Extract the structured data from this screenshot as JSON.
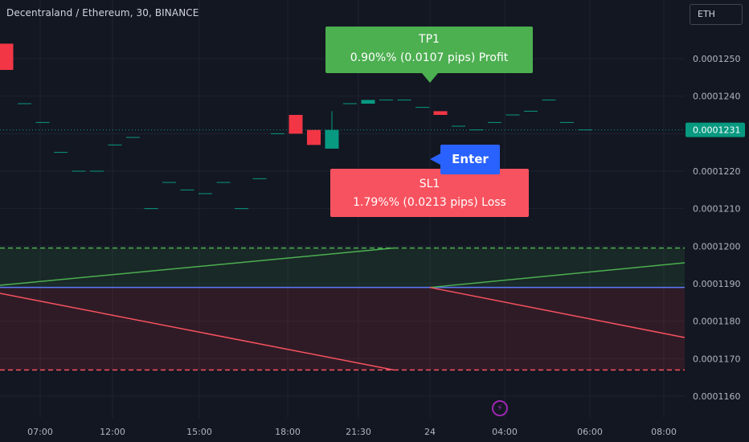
{
  "header": {
    "symbol_title": "Decentraland / Ethereum, 30, BINANCE",
    "currency_badge": "ETH"
  },
  "labels": {
    "tp_title": "TP1",
    "tp_detail": "0.90%% (0.0107 pips) Profit",
    "sl_title": "SL1",
    "sl_detail": "1.79%% (0.0213 pips) Loss",
    "enter": "Enter"
  },
  "colors": {
    "background": "#131722",
    "grid": "#1f2330",
    "up_candle": "#089981",
    "down_candle": "#f23645",
    "tp_green": "#4caf50",
    "sl_red": "#f7525f",
    "entry_blue": "#2962ff",
    "price_badge": "#089981"
  },
  "icons": {
    "bolt": "lightning-bolt-icon"
  },
  "chart_data": {
    "type": "candlestick",
    "title": "Decentraland / Ethereum, 30, BINANCE",
    "current_price": "0.0001231",
    "y_ticks": [
      "0.0001250",
      "0.0001240",
      "0.0001230",
      "0.0001220",
      "0.0001210",
      "0.0001200",
      "0.0001190",
      "0.0001180",
      "0.0001170",
      "0.0001160"
    ],
    "y_tick_values": [
      0.000125,
      0.000124,
      0.000123,
      0.000122,
      0.000121,
      0.00012,
      0.000119,
      0.000118,
      0.000117,
      0.000116
    ],
    "x_ticks": [
      "07:00",
      "12:00",
      "15:00",
      "18:00",
      "21:30",
      "24",
      "04:00",
      "06:00",
      "08:00"
    ],
    "ylim": [
      0.0001155,
      0.000126
    ],
    "grid": true,
    "levels": {
      "entry": 0.0001189,
      "take_profit": 0.00011995,
      "stop_loss": 0.0001167
    },
    "candles": [
      {
        "o": 0.0001254,
        "h": 0.0001254,
        "l": 0.0001247,
        "c": 0.0001247,
        "dir": "down"
      },
      {
        "o": 0.0001238,
        "h": 0.0001238,
        "l": 0.0001238,
        "c": 0.0001238,
        "dir": "down"
      },
      {
        "o": 0.0001233,
        "h": 0.0001233,
        "l": 0.0001233,
        "c": 0.0001233,
        "dir": "down"
      },
      {
        "o": 0.0001225,
        "h": 0.0001225,
        "l": 0.0001225,
        "c": 0.0001225,
        "dir": "down"
      },
      {
        "o": 0.000122,
        "h": 0.000122,
        "l": 0.000122,
        "c": 0.000122,
        "dir": "down"
      },
      {
        "o": 0.000122,
        "h": 0.000122,
        "l": 0.000122,
        "c": 0.000122,
        "dir": "down"
      },
      {
        "o": 0.0001227,
        "h": 0.0001227,
        "l": 0.0001227,
        "c": 0.0001227,
        "dir": "down"
      },
      {
        "o": 0.0001229,
        "h": 0.0001229,
        "l": 0.0001229,
        "c": 0.0001229,
        "dir": "down"
      },
      {
        "o": 0.000121,
        "h": 0.000121,
        "l": 0.000121,
        "c": 0.000121,
        "dir": "down"
      },
      {
        "o": 0.0001217,
        "h": 0.0001217,
        "l": 0.0001217,
        "c": 0.0001217,
        "dir": "down"
      },
      {
        "o": 0.0001215,
        "h": 0.0001215,
        "l": 0.0001215,
        "c": 0.0001215,
        "dir": "down"
      },
      {
        "o": 0.0001214,
        "h": 0.0001214,
        "l": 0.0001214,
        "c": 0.0001214,
        "dir": "down"
      },
      {
        "o": 0.0001217,
        "h": 0.0001217,
        "l": 0.0001217,
        "c": 0.0001217,
        "dir": "down"
      },
      {
        "o": 0.000121,
        "h": 0.000121,
        "l": 0.000121,
        "c": 0.000121,
        "dir": "down"
      },
      {
        "o": 0.0001218,
        "h": 0.0001218,
        "l": 0.0001218,
        "c": 0.0001218,
        "dir": "down"
      },
      {
        "o": 0.000123,
        "h": 0.000123,
        "l": 0.000123,
        "c": 0.000123,
        "dir": "down"
      },
      {
        "o": 0.0001235,
        "h": 0.0001235,
        "l": 0.000123,
        "c": 0.000123,
        "dir": "down"
      },
      {
        "o": 0.0001231,
        "h": 0.0001231,
        "l": 0.0001227,
        "c": 0.0001227,
        "dir": "down"
      },
      {
        "o": 0.0001226,
        "h": 0.0001236,
        "l": 0.0001226,
        "c": 0.0001231,
        "dir": "up"
      },
      {
        "o": 0.0001238,
        "h": 0.0001238,
        "l": 0.0001238,
        "c": 0.0001238,
        "dir": "down"
      },
      {
        "o": 0.0001238,
        "h": 0.0001239,
        "l": 0.0001238,
        "c": 0.0001239,
        "dir": "up"
      },
      {
        "o": 0.0001239,
        "h": 0.0001239,
        "l": 0.0001239,
        "c": 0.0001239,
        "dir": "down"
      },
      {
        "o": 0.0001239,
        "h": 0.0001239,
        "l": 0.0001239,
        "c": 0.0001239,
        "dir": "down"
      },
      {
        "o": 0.0001237,
        "h": 0.0001237,
        "l": 0.0001237,
        "c": 0.0001237,
        "dir": "down"
      },
      {
        "o": 0.0001236,
        "h": 0.0001236,
        "l": 0.0001235,
        "c": 0.0001235,
        "dir": "down"
      },
      {
        "o": 0.0001232,
        "h": 0.0001232,
        "l": 0.0001232,
        "c": 0.0001232,
        "dir": "down"
      },
      {
        "o": 0.0001231,
        "h": 0.0001231,
        "l": 0.0001231,
        "c": 0.0001231,
        "dir": "down"
      },
      {
        "o": 0.0001233,
        "h": 0.0001233,
        "l": 0.0001233,
        "c": 0.0001233,
        "dir": "down"
      },
      {
        "o": 0.0001235,
        "h": 0.0001235,
        "l": 0.0001235,
        "c": 0.0001235,
        "dir": "down"
      },
      {
        "o": 0.0001236,
        "h": 0.0001236,
        "l": 0.0001236,
        "c": 0.0001236,
        "dir": "down"
      },
      {
        "o": 0.0001239,
        "h": 0.0001239,
        "l": 0.0001239,
        "c": 0.0001239,
        "dir": "down"
      },
      {
        "o": 0.0001233,
        "h": 0.0001233,
        "l": 0.0001233,
        "c": 0.0001233,
        "dir": "down"
      },
      {
        "o": 0.0001231,
        "h": 0.0001231,
        "l": 0.0001231,
        "c": 0.0001231,
        "dir": "down"
      }
    ]
  }
}
